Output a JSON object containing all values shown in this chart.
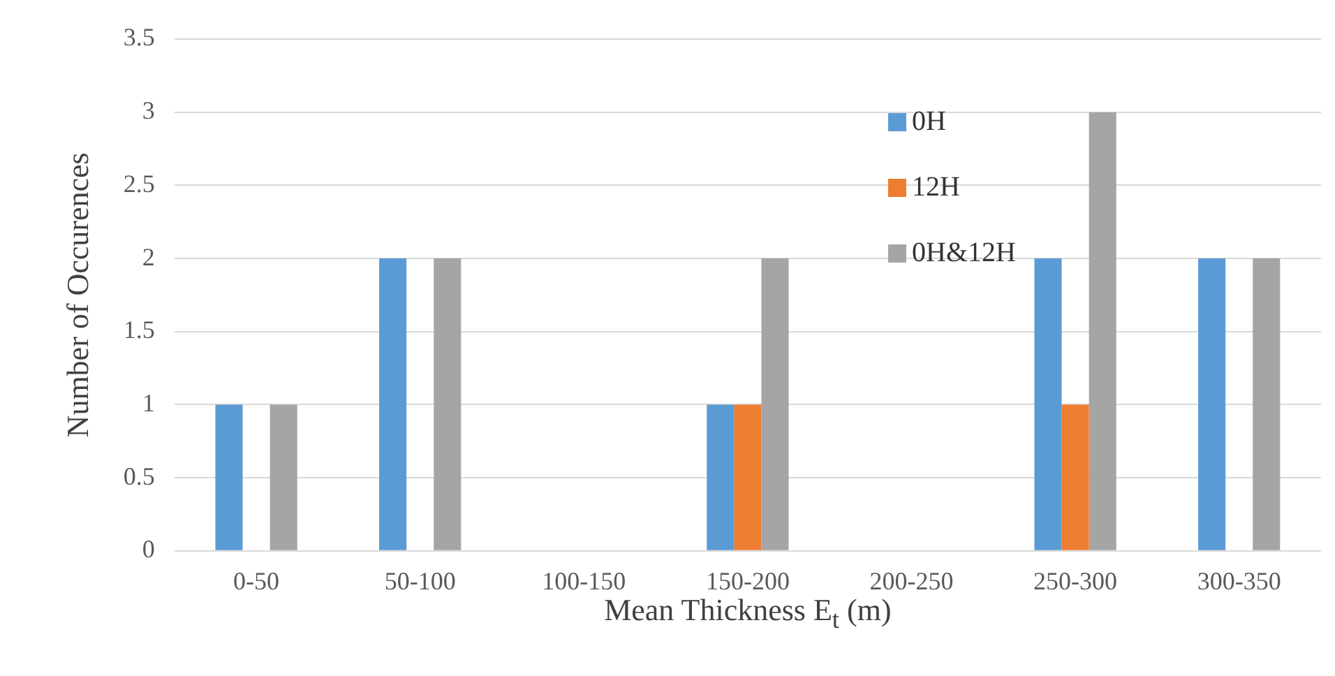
{
  "chart_data": {
    "type": "bar",
    "xlabel": "Mean Thickness E$_{t}$ (m)",
    "ylabel": "Number of Occurences",
    "categories": [
      "0-50",
      "50-100",
      "100-150",
      "150-200",
      "200-250",
      "250-300",
      "300-350"
    ],
    "series": [
      {
        "name": "0H",
        "color": "#5b9bd5",
        "values": [
          1,
          2,
          0,
          1,
          0,
          2,
          2
        ]
      },
      {
        "name": "12H",
        "color": "#ed7d31",
        "values": [
          0,
          0,
          0,
          1,
          0,
          1,
          0
        ]
      },
      {
        "name": "0H&12H",
        "color": "#a5a5a5",
        "values": [
          1,
          2,
          0,
          2,
          0,
          3,
          2
        ]
      }
    ],
    "ylim": [
      0,
      3.5
    ],
    "yticks": [
      0,
      0.5,
      1,
      1.5,
      2,
      2.5,
      3,
      3.5
    ],
    "grid": "y",
    "legend": "top right"
  }
}
